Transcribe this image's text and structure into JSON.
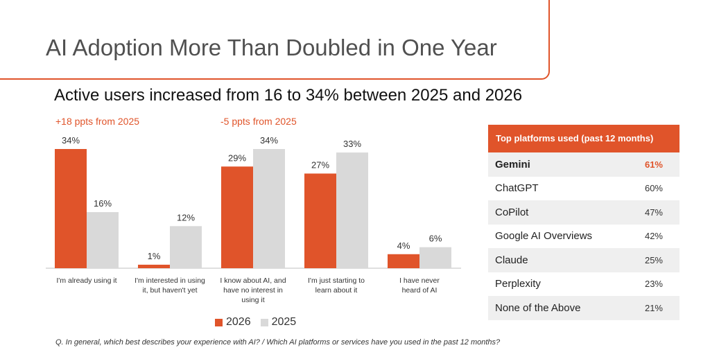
{
  "title": "AI Adoption More Than Doubled in One Year",
  "subtitle": "Active users increased from 16 to 34% between 2025 and 2026",
  "annotations": [
    "+18 ppts from 2025",
    "-5 ppts from 2025"
  ],
  "colors": {
    "accent": "#E0542A",
    "series_2026": "#E0542A",
    "series_2025": "#D9D9D9"
  },
  "chart_data": {
    "type": "bar",
    "categories": [
      [
        "I'm already using it"
      ],
      [
        "I'm interested in using",
        "it, but haven't yet"
      ],
      [
        "I know about AI, and",
        "have no interest in",
        "using it"
      ],
      [
        "I'm just starting to",
        "learn about it"
      ],
      [
        "I have never",
        "heard of AI"
      ]
    ],
    "series": [
      {
        "name": "2026",
        "values": [
          34,
          1,
          29,
          27,
          4
        ],
        "labels": [
          "34%",
          "1%",
          "29%",
          "27%",
          "4%"
        ]
      },
      {
        "name": "2025",
        "values": [
          16,
          12,
          34,
          33,
          6
        ],
        "labels": [
          "16%",
          "12%",
          "34%",
          "33%",
          "6%"
        ]
      }
    ],
    "ylim": [
      0,
      34
    ],
    "grid": false,
    "legend": "bottom"
  },
  "platforms": {
    "header": "Top platforms used (past 12 months)",
    "rows": [
      {
        "name": "Gemini",
        "value": "61%"
      },
      {
        "name": "ChatGPT",
        "value": "60%"
      },
      {
        "name": "CoPilot",
        "value": "47%"
      },
      {
        "name": "Google AI Overviews",
        "value": "42%"
      },
      {
        "name": "Claude",
        "value": "25%"
      },
      {
        "name": "Perplexity",
        "value": "23%"
      },
      {
        "name": "None of the Above",
        "value": "21%"
      }
    ]
  },
  "footnote": "Q. In general, which best describes your experience with AI? / Which AI platforms or services have you used in the past 12 months?"
}
